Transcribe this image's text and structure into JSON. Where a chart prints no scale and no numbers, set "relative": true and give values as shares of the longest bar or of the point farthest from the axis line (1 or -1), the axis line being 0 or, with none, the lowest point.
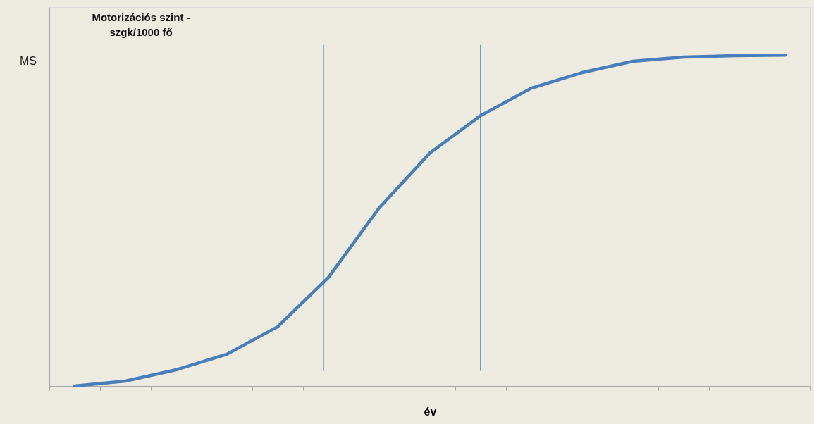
{
  "chart_data": {
    "type": "line",
    "relative": true,
    "ylabel": "Motorizációs szint -\nszgk/1000 fő",
    "xlabel": "év",
    "categories": [
      null,
      null,
      null,
      null,
      null,
      null,
      null,
      null,
      null,
      null,
      null,
      null,
      null,
      null,
      null
    ],
    "series": [
      {
        "color": "#4a7ebb",
        "values": [
          0,
          0.015,
          0.049,
          0.096,
          0.179,
          0.328,
          0.538,
          0.704,
          0.817,
          0.9,
          0.947,
          0.981,
          0.994,
          0.998,
          1
        ]
      }
    ],
    "annotations": [
      "MS"
    ],
    "grid": false,
    "marker": "none",
    "line_style": "solid"
  }
}
